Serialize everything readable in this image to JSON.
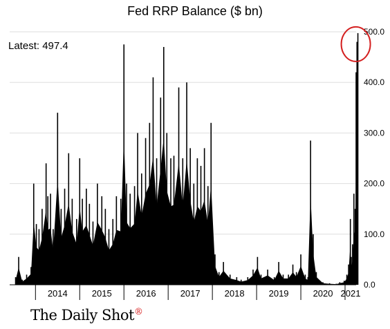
{
  "chart_data": {
    "type": "bar",
    "title": "Fed RRP Balance ($ bn)",
    "annotation": {
      "label": "Latest:",
      "value": "497.4"
    },
    "x_range": [
      "2013-06",
      "2021-04"
    ],
    "x_ticks": [
      "2014",
      "2015",
      "2016",
      "2017",
      "2018",
      "2019",
      "2020",
      "2021"
    ],
    "y_ticks": [
      "0.0",
      "100.0",
      "200.0",
      "300.0",
      "400.0",
      "500.0"
    ],
    "ylim": [
      0,
      500
    ],
    "grid": true,
    "highlight": "latest",
    "highlight_color": "#d42020",
    "bar_color": "#000000",
    "series": [
      {
        "values": [
          [
            2013.55,
            15
          ],
          [
            2013.62,
            55
          ],
          [
            2013.7,
            10
          ],
          [
            2013.8,
            20
          ],
          [
            2013.9,
            35
          ],
          [
            2013.96,
            200
          ],
          [
            2014.02,
            120
          ],
          [
            2014.08,
            110
          ],
          [
            2014.15,
            150
          ],
          [
            2014.24,
            240
          ],
          [
            2014.28,
            175
          ],
          [
            2014.34,
            180
          ],
          [
            2014.4,
            110
          ],
          [
            2014.5,
            340
          ],
          [
            2014.58,
            150
          ],
          [
            2014.66,
            190
          ],
          [
            2014.75,
            260
          ],
          [
            2014.83,
            170
          ],
          [
            2014.93,
            130
          ],
          [
            2015.0,
            250
          ],
          [
            2015.06,
            170
          ],
          [
            2015.15,
            190
          ],
          [
            2015.22,
            160
          ],
          [
            2015.3,
            125
          ],
          [
            2015.4,
            200
          ],
          [
            2015.5,
            175
          ],
          [
            2015.58,
            150
          ],
          [
            2015.66,
            110
          ],
          [
            2015.75,
            130
          ],
          [
            2015.83,
            175
          ],
          [
            2015.93,
            170
          ],
          [
            2016.0,
            475
          ],
          [
            2016.06,
            200
          ],
          [
            2016.14,
            180
          ],
          [
            2016.24,
            195
          ],
          [
            2016.31,
            300
          ],
          [
            2016.4,
            220
          ],
          [
            2016.49,
            290
          ],
          [
            2016.58,
            320
          ],
          [
            2016.66,
            410
          ],
          [
            2016.74,
            250
          ],
          [
            2016.83,
            370
          ],
          [
            2016.9,
            470
          ],
          [
            2016.97,
            300
          ],
          [
            2017.06,
            250
          ],
          [
            2017.13,
            255
          ],
          [
            2017.24,
            390
          ],
          [
            2017.33,
            250
          ],
          [
            2017.42,
            400
          ],
          [
            2017.5,
            270
          ],
          [
            2017.58,
            200
          ],
          [
            2017.66,
            250
          ],
          [
            2017.74,
            235
          ],
          [
            2017.82,
            270
          ],
          [
            2017.9,
            195
          ],
          [
            2017.97,
            320
          ],
          [
            2018.06,
            60
          ],
          [
            2018.15,
            25
          ],
          [
            2018.25,
            45
          ],
          [
            2018.4,
            20
          ],
          [
            2018.55,
            15
          ],
          [
            2018.65,
            10
          ],
          [
            2018.8,
            15
          ],
          [
            2018.92,
            30
          ],
          [
            2019.02,
            55
          ],
          [
            2019.1,
            20
          ],
          [
            2019.25,
            30
          ],
          [
            2019.4,
            15
          ],
          [
            2019.5,
            45
          ],
          [
            2019.6,
            20
          ],
          [
            2019.72,
            20
          ],
          [
            2019.82,
            40
          ],
          [
            2019.9,
            25
          ],
          [
            2020.0,
            60
          ],
          [
            2020.1,
            20
          ],
          [
            2020.16,
            15
          ],
          [
            2020.22,
            285
          ],
          [
            2020.28,
            100
          ],
          [
            2020.35,
            25
          ],
          [
            2020.5,
            5
          ],
          [
            2020.65,
            3
          ],
          [
            2020.8,
            2
          ],
          [
            2020.88,
            5
          ],
          [
            2020.98,
            8
          ],
          [
            2021.04,
            20
          ],
          [
            2021.08,
            40
          ],
          [
            2021.12,
            130
          ],
          [
            2021.14,
            55
          ],
          [
            2021.17,
            80
          ],
          [
            2021.2,
            180
          ],
          [
            2021.23,
            150
          ],
          [
            2021.25,
            420
          ],
          [
            2021.27,
            480
          ],
          [
            2021.29,
            497.4
          ]
        ]
      }
    ]
  },
  "footer": {
    "source": "The Daily Shot",
    "mark": "®"
  }
}
